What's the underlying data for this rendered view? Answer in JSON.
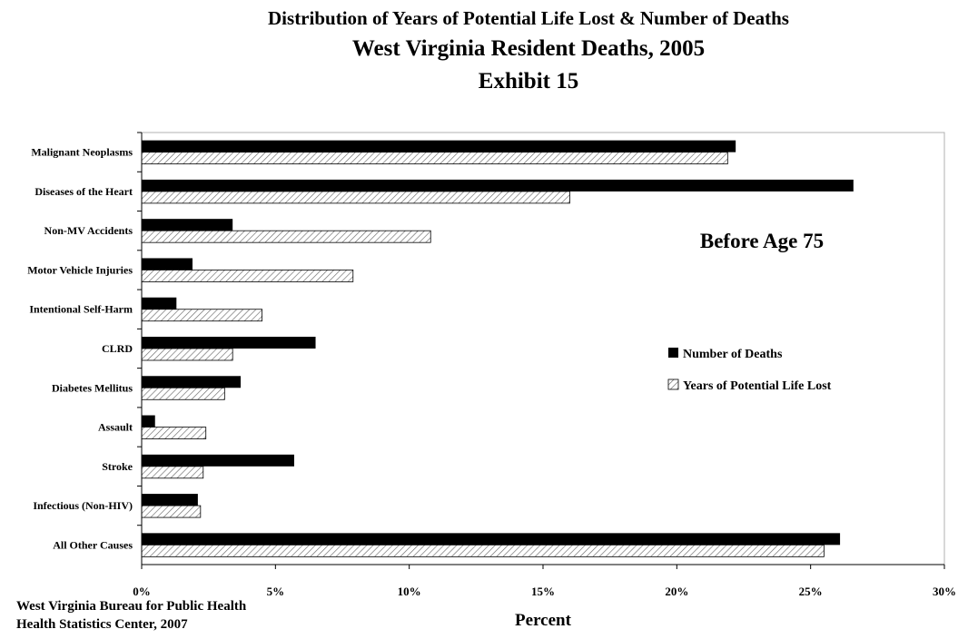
{
  "header": {
    "title": "Distribution of Years of Potential Life Lost & Number of Deaths",
    "subtitle": "West Virginia Resident Deaths, 2005",
    "exhibit": "Exhibit 15"
  },
  "source": {
    "line1": "West Virginia Bureau for Public Health",
    "line2": "Health Statistics Center, 2007"
  },
  "chart_data": {
    "type": "bar",
    "orientation": "horizontal",
    "title": "Distribution of Years of Potential Life Lost & Number of Deaths",
    "categories": [
      "Malignant Neoplasms",
      "Diseases of the Heart",
      "Non-MV Accidents",
      "Motor Vehicle Injuries",
      "Intentional Self-Harm",
      "CLRD",
      "Diabetes Mellitus",
      "Assault",
      "Stroke",
      "Infectious (Non-HIV)",
      "All Other Causes"
    ],
    "series": [
      {
        "name": "Number of Deaths",
        "color": "#000000",
        "pattern": "solid",
        "values": [
          22.2,
          26.6,
          3.4,
          1.9,
          1.3,
          6.5,
          3.7,
          0.5,
          5.7,
          2.1,
          26.1
        ]
      },
      {
        "name": "Years of Potential Life Lost",
        "color": "#ffffff",
        "pattern": "diagonal-hatch",
        "values": [
          21.9,
          16.0,
          10.8,
          7.9,
          4.5,
          3.4,
          3.1,
          2.4,
          2.3,
          2.2,
          25.5
        ]
      }
    ],
    "xlabel": "Percent",
    "ylabel": "",
    "xlim": [
      0,
      30
    ],
    "x_ticks": [
      "0%",
      "5%",
      "10%",
      "15%",
      "20%",
      "25%",
      "30%"
    ],
    "annotation": "Before Age 75",
    "grid": false,
    "legend_position": "right"
  }
}
